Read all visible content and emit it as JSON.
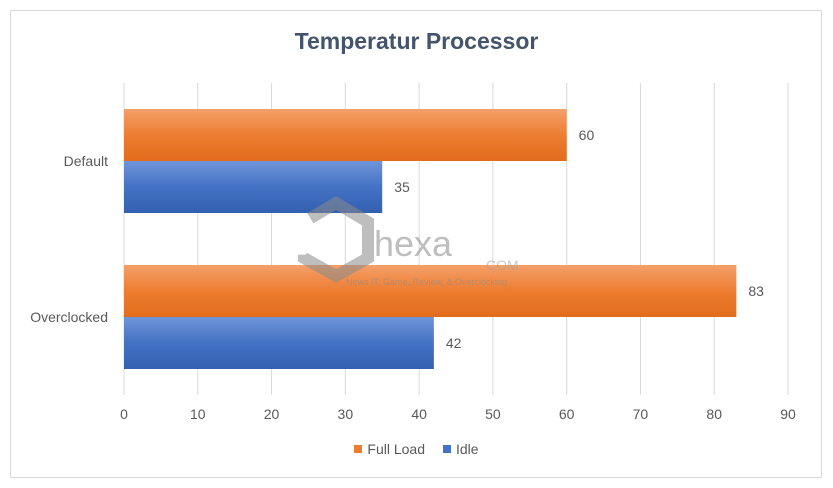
{
  "chart_data": {
    "type": "bar",
    "orientation": "horizontal",
    "title": "Temperatur Processor",
    "categories": [
      "Default",
      "Overclocked"
    ],
    "series": [
      {
        "name": "Full Load",
        "values": [
          60,
          83
        ],
        "color": "#ed7d31"
      },
      {
        "name": "Idle",
        "values": [
          35,
          42
        ],
        "color": "#4472c4"
      }
    ],
    "xlim": [
      0,
      90
    ],
    "xticks": [
      0,
      10,
      20,
      30,
      40,
      50,
      60,
      70,
      80,
      90
    ],
    "grid": true,
    "legend": "bottom"
  },
  "watermark": {
    "brand": "hexa",
    "domain": "COM",
    "tagline": "News IT, Game, Review, & Overclocking"
  }
}
